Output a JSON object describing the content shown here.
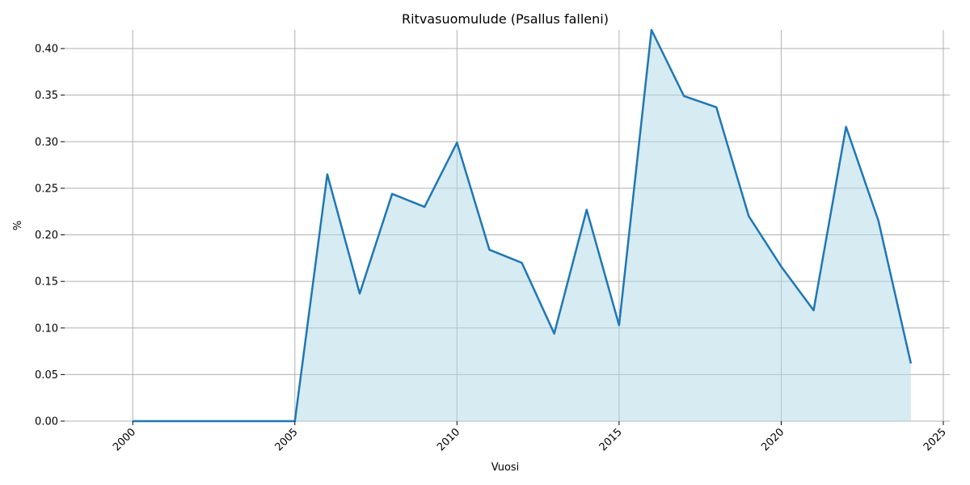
{
  "chart_data": {
    "type": "area",
    "title": "Ritvasuomulude (Psallus falleni)",
    "xlabel": "Vuosi",
    "ylabel": "%",
    "xlim": [
      1997.9,
      2025.2
    ],
    "ylim": [
      0,
      0.42
    ],
    "xticks": [
      2000,
      2005,
      2010,
      2015,
      2020,
      2025
    ],
    "yticks": [
      0.0,
      0.05,
      0.1,
      0.15,
      0.2,
      0.25,
      0.3,
      0.35,
      0.4
    ],
    "grid": true,
    "line_color": "#1f77b4",
    "fill_color": "#add8e6",
    "series": [
      {
        "x": [
          2000,
          2001,
          2002,
          2003,
          2004,
          2005,
          2006,
          2007,
          2008,
          2009,
          2010,
          2011,
          2012,
          2013,
          2014,
          2015,
          2016,
          2017,
          2018,
          2019,
          2020,
          2021,
          2022,
          2023,
          2024
        ],
        "values": [
          0,
          0,
          0,
          0,
          0,
          0,
          0.265,
          0.137,
          0.244,
          0.23,
          0.299,
          0.184,
          0.17,
          0.094,
          0.227,
          0.103,
          0.42,
          0.349,
          0.337,
          0.22,
          0.166,
          0.119,
          0.316,
          0.215,
          0.062
        ]
      }
    ]
  }
}
